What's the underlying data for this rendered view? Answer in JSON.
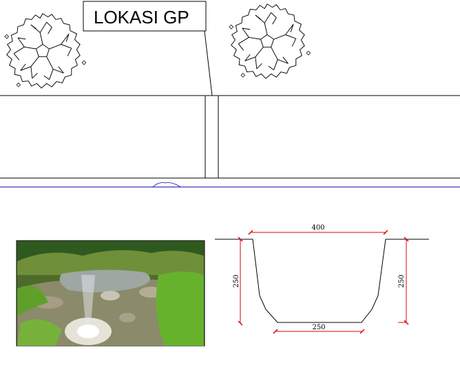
{
  "callout": {
    "label": "LOKASI GP"
  },
  "dimensions": {
    "top_width": "400",
    "bottom_width": "250",
    "left_depth": "250",
    "right_depth": "250"
  },
  "colors": {
    "line": "#000000",
    "dimension": "#e00000",
    "blue_line": "#0000aa"
  },
  "icons": [
    "tree-symbol-left",
    "tree-symbol-right",
    "site-photo-stream"
  ]
}
